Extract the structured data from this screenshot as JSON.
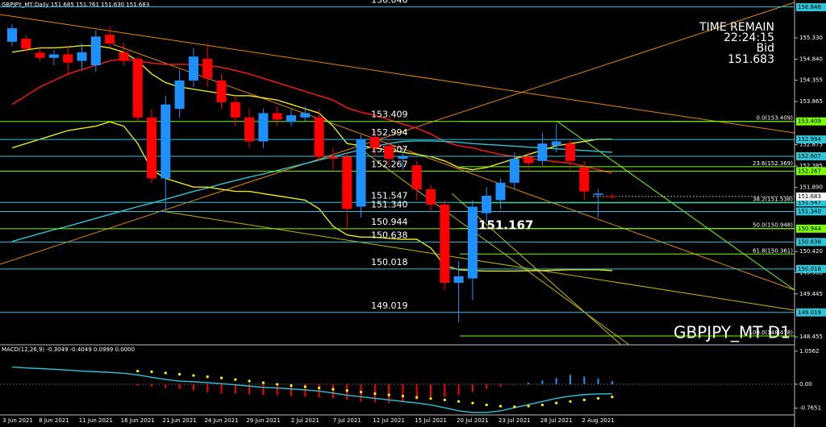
{
  "chart_data": [
    {
      "type": "candlestick",
      "title": "GBPJPY_MT,Daily  151.685 151.761 151.630 151.683",
      "categories": [
        "3 Jun 2021",
        null,
        null,
        "8 Jun 2021",
        null,
        null,
        "11 Jun 2021",
        null,
        null,
        "16 Jun 2021",
        null,
        null,
        "21 Jun 2021",
        null,
        null,
        "24 Jun 2021",
        null,
        null,
        "29 Jun 2021",
        null,
        null,
        "2 Jul 2021",
        null,
        null,
        "7 Jul 2021",
        null,
        null,
        "12 Jul 2021",
        null,
        null,
        "15 Jul 2021",
        null,
        null,
        "20 Jul 2021",
        null,
        null,
        "23 Jul 2021",
        null,
        null,
        "28 Jul 2021",
        null,
        null,
        "2 Aug 2021",
        null
      ],
      "open": [
        155.24,
        155.31,
        154.99,
        154.87,
        154.95,
        154.8,
        154.7,
        155.4,
        155.0,
        154.85,
        153.5,
        152.1,
        153.7,
        154.35,
        154.85,
        154.35,
        153.85,
        153.5,
        152.95,
        153.6,
        153.4,
        153.5,
        153.5,
        152.6,
        152.6,
        151.45,
        153.05,
        152.85,
        152.55,
        152.4,
        151.85,
        151.5,
        149.7,
        149.8,
        151.3,
        151.6,
        152.0,
        152.6,
        152.5,
        152.85,
        152.9,
        152.35,
        151.72,
        151.69
      ],
      "high": [
        155.64,
        155.4,
        155.1,
        155.05,
        155.15,
        155.2,
        155.5,
        155.6,
        155.2,
        154.9,
        153.7,
        154.0,
        154.6,
        155.1,
        155.2,
        154.5,
        154.0,
        153.7,
        153.7,
        153.75,
        153.7,
        153.75,
        153.7,
        152.8,
        152.7,
        153.1,
        153.2,
        153.0,
        152.8,
        152.5,
        151.95,
        151.6,
        150.2,
        151.6,
        151.9,
        152.1,
        152.7,
        152.7,
        153.15,
        153.35,
        153.0,
        152.5,
        151.85,
        151.761
      ],
      "low": [
        155.13,
        155.0,
        154.8,
        154.7,
        154.45,
        154.6,
        154.55,
        155.1,
        154.7,
        153.4,
        152.0,
        151.35,
        153.5,
        154.2,
        154.2,
        153.7,
        153.3,
        152.8,
        152.8,
        153.3,
        153.3,
        153.4,
        152.5,
        152.3,
        150.9,
        151.2,
        152.6,
        152.4,
        152.3,
        151.6,
        151.3,
        149.55,
        148.8,
        149.3,
        151.1,
        151.4,
        151.85,
        152.3,
        152.4,
        152.7,
        152.3,
        151.6,
        151.2,
        151.63
      ],
      "close": [
        155.55,
        155.08,
        154.87,
        154.95,
        154.76,
        155.0,
        155.36,
        155.2,
        154.8,
        153.5,
        152.1,
        153.8,
        154.35,
        154.9,
        154.4,
        153.85,
        153.5,
        152.95,
        153.6,
        153.45,
        153.55,
        153.6,
        152.6,
        152.55,
        151.4,
        153.0,
        152.8,
        152.55,
        152.6,
        151.85,
        151.5,
        149.7,
        149.85,
        151.45,
        151.7,
        152.0,
        152.55,
        152.45,
        152.9,
        152.95,
        152.5,
        151.8,
        151.75,
        151.683
      ],
      "up_color": "#1e90ff",
      "down_color": "#ff0000",
      "ylim": [
        148.274,
        156.2
      ],
      "yticks": [
        {
          "value": 155.33,
          "label": "155.330"
        },
        {
          "value": 154.84,
          "label": "154.840"
        },
        154.355,
        153.865,
        152.875,
        152.385,
        {
          "value": 151.89,
          "label": "151.890"
        },
        {
          "value": 150.42,
          "label": "150.420"
        },
        149.935,
        149.445,
        148.455
      ],
      "lines": [
        {
          "color": "#ff1a1a",
          "values": [
            153.8,
            154.0,
            154.2,
            154.35,
            154.5,
            154.6,
            154.7,
            154.8,
            154.85,
            154.8,
            154.75,
            154.72,
            154.72,
            154.72,
            154.7,
            154.65,
            154.58,
            154.5,
            154.4,
            154.3,
            154.2,
            154.1,
            154.0,
            153.9,
            153.72,
            153.62,
            153.55,
            153.45,
            153.35,
            153.25,
            153.12,
            152.95,
            152.85,
            152.8,
            152.72,
            152.65,
            152.6,
            152.55,
            152.52,
            152.48,
            152.45,
            152.38,
            152.3,
            152.22
          ]
        },
        {
          "color": "#2ec4d6",
          "values": [
            150.65,
            150.74,
            150.83,
            150.92,
            151.0,
            151.09,
            151.18,
            151.27,
            151.36,
            151.45,
            151.53,
            151.62,
            151.71,
            151.8,
            151.88,
            151.97,
            152.05,
            152.13,
            152.2,
            152.28,
            152.36,
            152.44,
            152.52,
            152.6,
            152.68,
            152.76,
            152.84,
            152.9,
            152.95,
            152.96,
            152.96,
            152.95,
            152.93,
            152.9,
            152.88,
            152.86,
            152.84,
            152.82,
            152.8,
            152.78,
            152.76,
            152.74,
            152.72,
            152.7
          ]
        },
        {
          "color": "#e6e619",
          "values": [
            155.0,
            155.05,
            155.1,
            155.1,
            155.12,
            155.15,
            155.15,
            155.1,
            155.0,
            154.8,
            154.5,
            154.3,
            154.2,
            154.15,
            154.1,
            154.05,
            154.0,
            154.0,
            153.95,
            153.9,
            153.8,
            153.7,
            153.6,
            153.3,
            152.9,
            152.85,
            152.8,
            152.75,
            152.7,
            152.65,
            152.6,
            152.5,
            152.35,
            152.3,
            152.35,
            152.45,
            152.55,
            152.65,
            152.75,
            152.85,
            152.9,
            152.95,
            153.0,
            153.0
          ]
        },
        {
          "color": "#e6e619",
          "values": [
            152.8,
            152.9,
            153.0,
            153.1,
            153.2,
            153.25,
            153.3,
            153.4,
            153.3,
            152.9,
            152.3,
            152.1,
            152.0,
            151.9,
            151.9,
            151.85,
            151.8,
            151.8,
            151.75,
            151.7,
            151.65,
            151.6,
            151.4,
            151.0,
            150.8,
            150.75,
            150.75,
            150.72,
            150.7,
            150.7,
            150.5,
            150.1,
            150.0,
            149.98,
            149.97,
            149.97,
            149.97,
            149.98,
            149.98,
            149.99,
            150.0,
            150.0,
            150.0,
            149.98
          ]
        }
      ],
      "levels": [
        {
          "value": 156.046,
          "label": "156.046",
          "color": "#2ec4d6"
        },
        {
          "value": 153.409,
          "label": "153.409",
          "color": "#7cfc00"
        },
        {
          "value": 152.994,
          "label": "152.994",
          "color": "#2ec4d6"
        },
        {
          "value": 152.607,
          "label": "152.607",
          "color": "#2ec4d6"
        },
        {
          "value": 152.267,
          "label": "152.267",
          "color": "#7cfc00"
        },
        {
          "value": 151.547,
          "label": "151.547",
          "color": "#2ec4d6"
        },
        {
          "value": 151.34,
          "label": "151.340",
          "color": "#2ec4d6"
        },
        {
          "value": 150.944,
          "label": "150.944",
          "color": "#7cfc00"
        },
        {
          "value": 150.638,
          "label": "150.638",
          "color": "#2ec4d6"
        },
        {
          "value": 150.018,
          "label": "150.018",
          "color": "#2ec4d6"
        },
        {
          "value": 149.019,
          "label": "149.019",
          "color": "#2ec4d6"
        }
      ],
      "fib_levels": [
        {
          "value": 153.409,
          "label": "0.0(153.409)"
        },
        {
          "value": 152.369,
          "label": "23.6(152.369)"
        },
        {
          "value": 151.538,
          "label": "38.2(151.538)"
        },
        {
          "value": 150.948,
          "label": "50.0(150.948)"
        },
        {
          "value": 150.361,
          "label": "61.8(150.361)"
        },
        {
          "value": 148.478,
          "label": "100.0(148.478)"
        }
      ],
      "fib_color": "#7cfc00",
      "price_marker": 151.167,
      "top_tag": "156.846",
      "current_price": 151.683,
      "time_remain_label": "TIME REMAIN",
      "time_remain": "22:24:15",
      "bid_label": "Bid",
      "bid": 151.683,
      "symbol_label": "GBPJPY_MT D1"
    },
    {
      "type": "macd",
      "title": "MACD(12,26,9) -0.3049 -0.4049 0.0999 0.0000",
      "ylim": [
        -0.98,
        1.156
      ],
      "yticks": [
        1.0562,
        {
          "value": 0,
          "label": "0.00"
        },
        -0.7651
      ],
      "histogram": [
        null,
        null,
        null,
        null,
        null,
        null,
        null,
        null,
        null,
        -0.05,
        -0.08,
        -0.12,
        -0.15,
        -0.2,
        -0.25,
        -0.3,
        -0.3,
        -0.32,
        -0.35,
        -0.35,
        -0.38,
        -0.4,
        -0.42,
        -0.45,
        -0.5,
        -0.55,
        -0.58,
        -0.6,
        -0.55,
        -0.5,
        -0.45,
        -0.4,
        -0.35,
        -0.25,
        -0.15,
        -0.08,
        -0.02,
        0.05,
        0.12,
        0.2,
        0.3,
        0.25,
        0.18,
        0.0999
      ],
      "pos_color": "#1e90ff",
      "neg_color": "#ff0000",
      "macd": [
        0.55,
        0.52,
        0.5,
        0.48,
        0.45,
        0.42,
        0.4,
        0.38,
        0.35,
        0.3,
        0.22,
        0.15,
        0.1,
        0.08,
        0.05,
        0.02,
        -0.02,
        -0.06,
        -0.1,
        -0.12,
        -0.15,
        -0.18,
        -0.22,
        -0.28,
        -0.35,
        -0.4,
        -0.45,
        -0.5,
        -0.55,
        -0.6,
        -0.66,
        -0.75,
        -0.85,
        -0.9,
        -0.9,
        -0.85,
        -0.75,
        -0.65,
        -0.55,
        -0.45,
        -0.38,
        -0.33,
        -0.31,
        -0.3049
      ],
      "macd_color": "#2ec4d6",
      "signal": [
        null,
        null,
        null,
        null,
        null,
        null,
        null,
        null,
        null,
        0.42,
        0.4,
        0.36,
        0.32,
        0.28,
        0.24,
        0.2,
        0.15,
        0.1,
        0.05,
        0.0,
        -0.04,
        -0.08,
        -0.12,
        -0.16,
        -0.2,
        -0.25,
        -0.3,
        -0.34,
        -0.38,
        -0.42,
        -0.46,
        -0.5,
        -0.55,
        -0.6,
        -0.66,
        -0.7,
        -0.72,
        -0.7,
        -0.66,
        -0.6,
        -0.55,
        -0.5,
        -0.45,
        -0.4049
      ],
      "signal_color": "#ffff00"
    }
  ]
}
